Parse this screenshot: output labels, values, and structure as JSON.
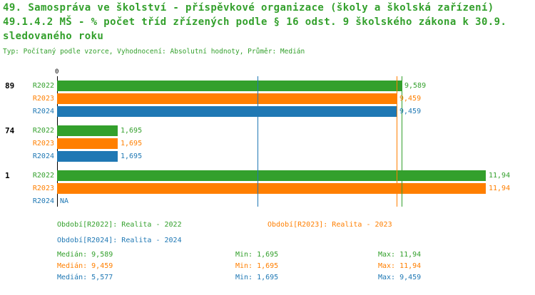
{
  "title": {
    "line1": "49. Samospráva ve školství - příspěvkové organizace (školy a školská zařízení)",
    "line2": "49.1.4.2 MŠ - % počet tříd zřízených podle § 16 odst. 9 školského zákona k 30.9.",
    "line3": "sledovaného roku",
    "subtitle": "Typ: Počítaný podle vzorce, Vyhodnocení: Absolutní hodnoty, Průměr: Medián"
  },
  "colors": {
    "green": "#33a02c",
    "orange": "#ff7f00",
    "blue": "#1f78b4",
    "axis": "#000000"
  },
  "chart_data": {
    "type": "bar",
    "orientation": "horizontal",
    "x_origin_label": "0",
    "xlim": [
      0,
      12.16
    ],
    "grid": false,
    "series_names": [
      "R2022",
      "R2023",
      "R2024"
    ],
    "groups": [
      {
        "label": "89",
        "bars": [
          {
            "series": "R2022",
            "value": 9.589,
            "display": "9,589",
            "color": "green"
          },
          {
            "series": "R2023",
            "value": 9.459,
            "display": "9,459",
            "color": "orange"
          },
          {
            "series": "R2024",
            "value": 9.459,
            "display": "9,459",
            "color": "blue"
          }
        ]
      },
      {
        "label": "74",
        "bars": [
          {
            "series": "R2022",
            "value": 1.695,
            "display": "1,695",
            "color": "green"
          },
          {
            "series": "R2023",
            "value": 1.695,
            "display": "1,695",
            "color": "orange"
          },
          {
            "series": "R2024",
            "value": 1.695,
            "display": "1,695",
            "color": "blue"
          }
        ]
      },
      {
        "label": "1",
        "bars": [
          {
            "series": "R2022",
            "value": 11.94,
            "display": "11,94",
            "color": "green"
          },
          {
            "series": "R2023",
            "value": 11.94,
            "display": "11,94",
            "color": "orange"
          },
          {
            "series": "R2024",
            "value": null,
            "display": "NA",
            "color": "blue"
          }
        ]
      }
    ],
    "reference_lines": [
      {
        "name": "median-R2022",
        "value": 9.589,
        "color": "green"
      },
      {
        "name": "median-R2023",
        "value": 9.459,
        "color": "orange"
      },
      {
        "name": "median-R2024",
        "value": 5.577,
        "color": "blue"
      }
    ]
  },
  "legend": [
    {
      "series": "R2022",
      "label": "Období[R2022]: Realita - 2022",
      "color": "green"
    },
    {
      "series": "R2023",
      "label": "Období[R2023]: Realita - 2023",
      "color": "orange"
    },
    {
      "series": "R2024",
      "label": "Období[R2024]: Realita - 2024",
      "color": "blue"
    }
  ],
  "stats": [
    {
      "series": "R2022",
      "median": "Medián: 9,589",
      "min": "Min: 1,695",
      "max": "Max: 11,94",
      "color": "green"
    },
    {
      "series": "R2023",
      "median": "Medián: 9,459",
      "min": "Min: 1,695",
      "max": "Max: 11,94",
      "color": "orange"
    },
    {
      "series": "R2024",
      "median": "Medián: 5,577",
      "min": "Min: 1,695",
      "max": "Max: 9,459",
      "color": "blue"
    }
  ]
}
